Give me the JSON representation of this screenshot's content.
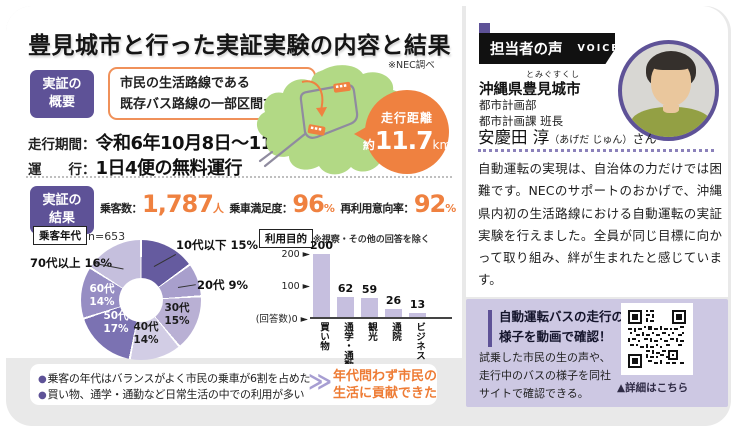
{
  "colors": {
    "accent_purple": "#5e5297",
    "accent_orange": "#ef8140",
    "panel_purple": "#cdc8e3",
    "map_green": "#b2d985"
  },
  "header": {
    "title": "豊見城市と行った実証実験の内容と結果",
    "source_note": "※NEC調べ"
  },
  "overview": {
    "badge_line1": "実証の",
    "badge_line2": "概要",
    "callout_line1": "市民の生活路線である",
    "callout_line2": "既存バス路線の一部区間で実証",
    "period_label": "走行期間：",
    "period_value": "令和6年10月8日～11月1日",
    "service_label": "運　　行：",
    "service_value": "1日4便の無料運行",
    "distance": {
      "label": "走行距離",
      "prefix": "約",
      "value": "11.7",
      "unit": "km"
    }
  },
  "results": {
    "badge_line1": "実証の",
    "badge_line2": "結果",
    "stats": [
      {
        "label": "乗客数：",
        "value": "1,787",
        "unit": "人"
      },
      {
        "label": "乗車満足度：",
        "value": "96",
        "unit": "%"
      },
      {
        "label": "再利用意向率：",
        "value": "92",
        "unit": "%"
      }
    ]
  },
  "chart_data": [
    {
      "type": "pie",
      "title": "乗客年代",
      "sample": "n=653",
      "unit": "%",
      "legend_position": "around",
      "segments": [
        {
          "label": "10代以下",
          "value": 15,
          "display": "15%",
          "color": "#655b9f"
        },
        {
          "label": "20代",
          "value": 9,
          "display": "9%",
          "color": "#a89fcc"
        },
        {
          "label": "30代",
          "value": 15,
          "display": "15%",
          "color": "#b9b0d4"
        },
        {
          "label": "40代",
          "value": 14,
          "display": "14%",
          "color": "#d2cde5"
        },
        {
          "label": "50代",
          "value": 17,
          "display": "17%",
          "color": "#7b72b2"
        },
        {
          "label": "60代",
          "value": 14,
          "display": "14%",
          "color": "#968dc3"
        },
        {
          "label": "70代以上",
          "value": 16,
          "display": "16%",
          "color": "#c5bfdd"
        }
      ]
    },
    {
      "type": "bar",
      "title": "利用目的",
      "note": "※視察・その他の回答を除く",
      "categories": [
        "買い物",
        "通学・通勤",
        "観光",
        "通院",
        "ビジネス"
      ],
      "values": [
        200,
        62,
        59,
        26,
        13
      ],
      "ylabel": "(回答数)",
      "yticks": [
        0,
        100,
        200
      ],
      "ylim": [
        0,
        210
      ],
      "grid": false,
      "y_top_label": "200 ►",
      "y_mid_label": "100 ►",
      "y_zero_label": "(回答数)0 ►"
    }
  ],
  "summary": {
    "bullets": [
      {
        "marker": "●",
        "text": "乗客の年代はバランスがよく市民の乗車が6割を占めた"
      },
      {
        "marker": "●",
        "text": "買い物、通学・通勤など日常生活の中での利用が多い"
      }
    ],
    "chevron": "≫",
    "conclusion_line1": "年代問わず市民の",
    "conclusion_line2": "生活に貢献できた"
  },
  "voice": {
    "badge_label": "担当者の声",
    "badge_en": "VOICE",
    "furigana": "とみぐすくし",
    "organization": "沖縄県豊見城市",
    "dept_line1": "都市計画部",
    "dept_line2": "都市計画課 班長",
    "person_name": "安慶田 淳",
    "person_kana": "（あげだ じゅん）",
    "person_suffix": "さん",
    "quote": "自動運転の実現は、自治体の力だけでは困難です。NECのサポートのおかげで、沖縄県内初の生活路線における自動運転の実証実験を行えました。全員が同じ目標に向かって取り組み、絆が生まれたと感じています。"
  },
  "video_box": {
    "title_line1": "自動運転バスの走行の",
    "title_line2": "様子を動画で確認！",
    "body": "試乗した市民の生の声や、走行中のバスの様子を同社サイトで確認できる。",
    "link_label": "▲詳細はこちら"
  }
}
